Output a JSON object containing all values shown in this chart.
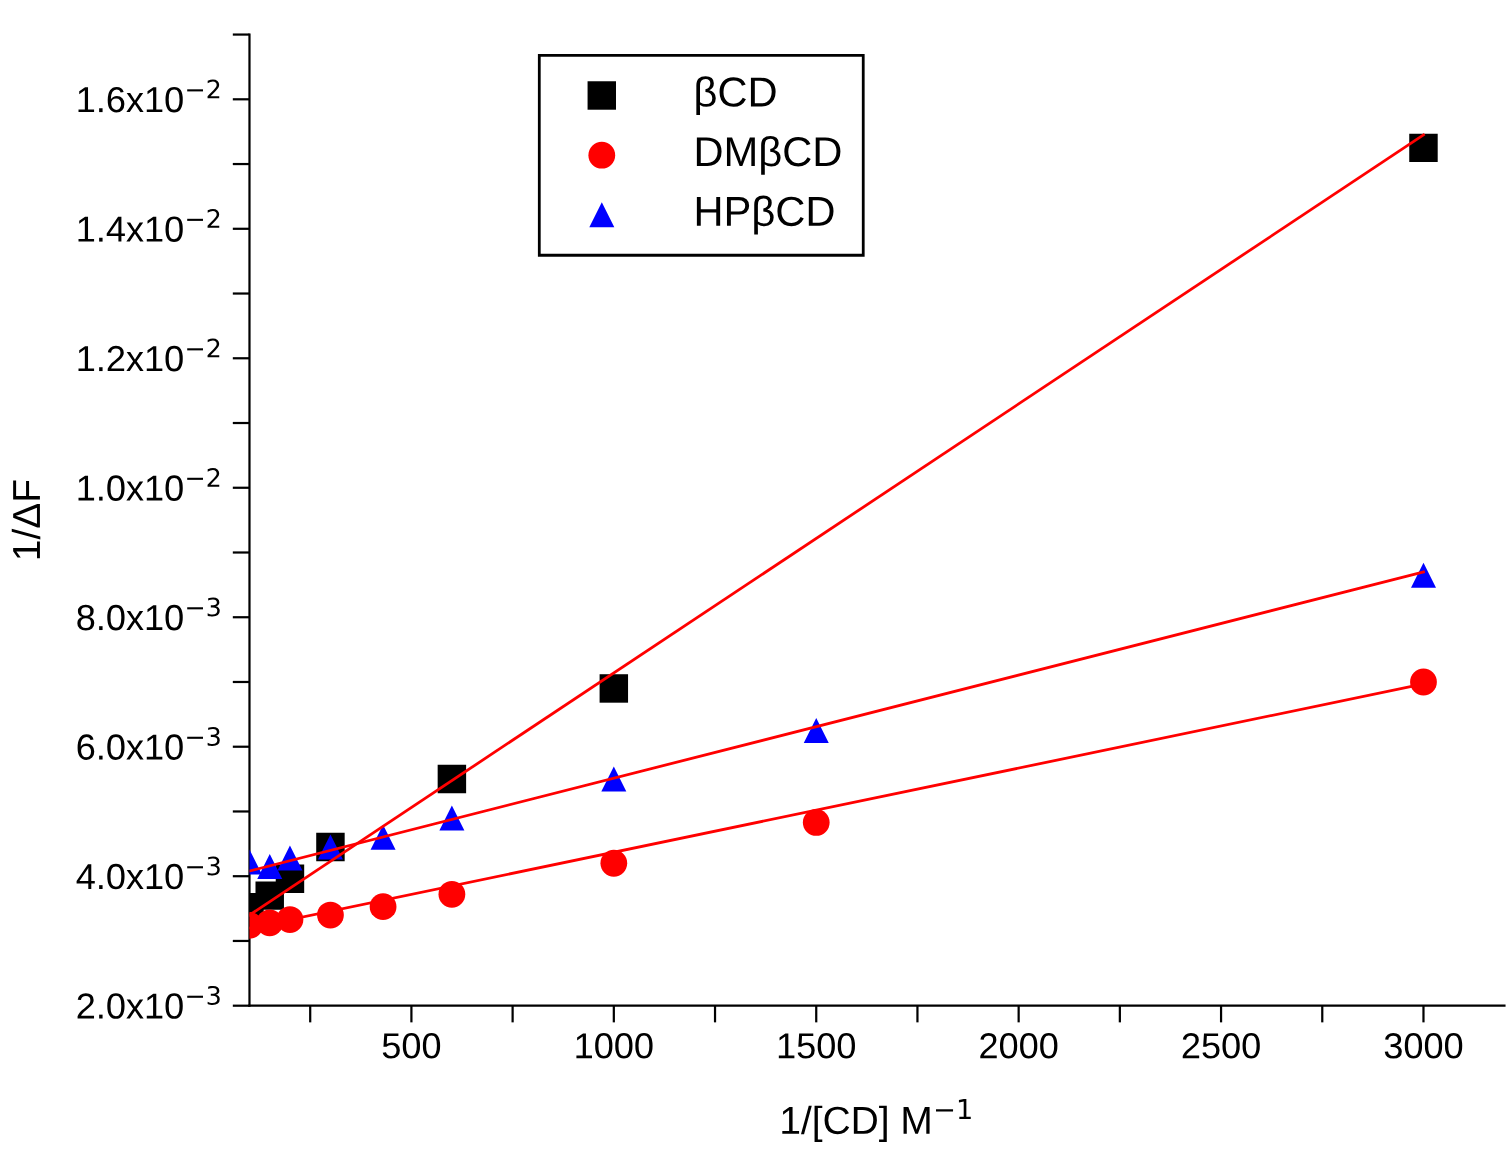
{
  "chart_data": {
    "type": "scatter",
    "xlabel": "1/[CD] M$^{−1}$",
    "ylabel": "1/ΔF",
    "xlim": [
      100,
      3200
    ],
    "xticks": [
      {
        "value": 250,
        "label": null
      },
      500,
      {
        "value": 750,
        "label": null
      },
      1000,
      {
        "value": 1250,
        "label": null
      },
      1500,
      {
        "value": 1750,
        "label": null
      },
      2000,
      {
        "value": 2250,
        "label": null
      },
      2500,
      {
        "value": 2750,
        "label": null
      },
      3000
    ],
    "ylim": [
      0.002,
      0.017
    ],
    "yticks": [
      {
        "value": 0.002,
        "label": "2.0x10$^{−3}$"
      },
      {
        "value": 0.003,
        "label": null
      },
      {
        "value": 0.004,
        "label": "4.0x10$^{−3}$"
      },
      {
        "value": 0.005,
        "label": null
      },
      {
        "value": 0.006,
        "label": "6.0x10$^{−3}$"
      },
      {
        "value": 0.007,
        "label": null
      },
      {
        "value": 0.008,
        "label": "8.0x10$^{−3}$"
      },
      {
        "value": 0.009,
        "label": null
      },
      {
        "value": 0.01,
        "label": "1.0x10$^{−2}$"
      },
      {
        "value": 0.011,
        "label": null
      },
      {
        "value": 0.012,
        "label": "1.2x10$^{−2}$"
      },
      {
        "value": 0.013,
        "label": null
      },
      {
        "value": 0.014,
        "label": "1.4x10$^{−2}$"
      },
      {
        "value": 0.015,
        "label": null
      },
      {
        "value": 0.016,
        "label": "1.6x10$^{−2}$"
      },
      {
        "value": 0.017,
        "label": null
      }
    ],
    "grid": false,
    "legend": "top",
    "series": [
      {
        "name": "βCD",
        "marker": "square",
        "color": "#000000",
        "x": [
          100,
          150,
          200,
          300,
          600,
          1000,
          3000
        ],
        "values": [
          0.00352,
          0.0037,
          0.00396,
          0.00445,
          0.0055,
          0.0069,
          0.01525
        ]
      },
      {
        "name": "DMβCD",
        "marker": "circle",
        "color": "#ff0000",
        "x": [
          100,
          150,
          200,
          300,
          430,
          600,
          1000,
          1500,
          3000
        ],
        "values": [
          0.00324,
          0.00328,
          0.00333,
          0.0034,
          0.00353,
          0.00372,
          0.0042,
          0.00483,
          0.007
        ]
      },
      {
        "name": "HPβCD",
        "marker": "triangle",
        "color": "#0000ff",
        "x": [
          100,
          150,
          200,
          300,
          430,
          600,
          1000,
          1500,
          3000
        ],
        "values": [
          0.00422,
          0.00415,
          0.00428,
          0.00445,
          0.0046,
          0.0049,
          0.0055,
          0.00625,
          0.00865
        ]
      },
      {
        "type": "line",
        "color": "#ff0000",
        "x": [
          100,
          3000
        ],
        "values": [
          0.0034,
          0.01545
        ]
      },
      {
        "type": "line",
        "color": "#ff0000",
        "x": [
          100,
          3000
        ],
        "values": [
          0.0032,
          0.00697
        ]
      },
      {
        "type": "line",
        "color": "#ff0000",
        "x": [
          100,
          3000
        ],
        "values": [
          0.00408,
          0.0087
        ]
      }
    ]
  }
}
